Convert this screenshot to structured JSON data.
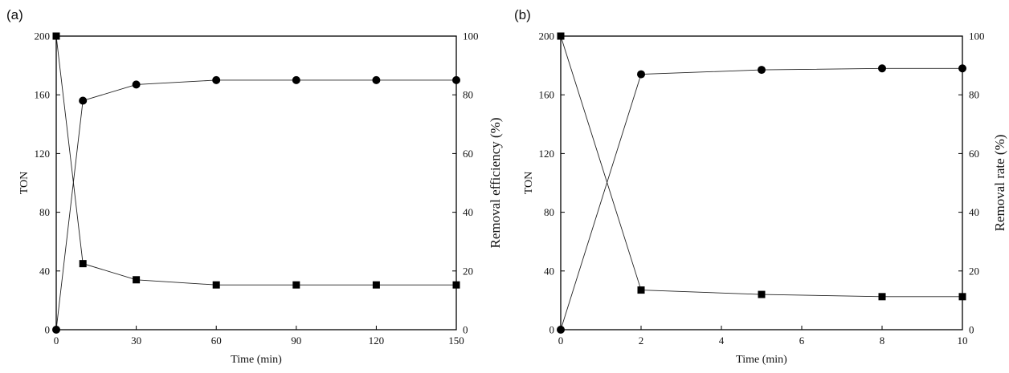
{
  "chart_data": [
    {
      "panel_label": "(a)",
      "type": "line",
      "xlabel": "Time (min)",
      "ylabel_left": "TON",
      "ylabel_right": "Removal efficiency (%)",
      "xlim": [
        0,
        150
      ],
      "ylim_left": [
        0,
        200
      ],
      "ylim_right": [
        0,
        100
      ],
      "xticks": [
        "0",
        "30",
        "60",
        "90",
        "120",
        "150"
      ],
      "yticks_left": [
        "0",
        "40",
        "80",
        "120",
        "160",
        "200"
      ],
      "yticks_right": [
        "0",
        "20",
        "40",
        "60",
        "80",
        "100"
      ],
      "grid": false,
      "series": [
        {
          "axis": "left",
          "marker": "square",
          "x": [
            0,
            10,
            30,
            60,
            90,
            120,
            150
          ],
          "values": [
            200,
            45,
            34,
            30.5,
            30.5,
            30.5,
            30.5
          ]
        },
        {
          "axis": "right",
          "marker": "circle",
          "x": [
            0,
            10,
            30,
            60,
            90,
            120,
            150
          ],
          "values": [
            0,
            78,
            83.5,
            85,
            85,
            85,
            85
          ]
        }
      ]
    },
    {
      "panel_label": "(b)",
      "type": "line",
      "xlabel": "Time (min)",
      "ylabel_left": "TON",
      "ylabel_right": "Removal rate (%)",
      "xlim": [
        0,
        10
      ],
      "ylim_left": [
        0,
        200
      ],
      "ylim_right": [
        0,
        100
      ],
      "xticks": [
        "0",
        "2",
        "4",
        "6",
        "8",
        "10"
      ],
      "yticks_left": [
        "0",
        "40",
        "80",
        "120",
        "160",
        "200"
      ],
      "yticks_right": [
        "0",
        "20",
        "40",
        "60",
        "80",
        "100"
      ],
      "grid": false,
      "series": [
        {
          "axis": "left",
          "marker": "square",
          "x": [
            0,
            2,
            5,
            8,
            10
          ],
          "values": [
            200,
            27,
            24,
            22.5,
            22.5
          ]
        },
        {
          "axis": "right",
          "marker": "circle",
          "x": [
            0,
            2,
            5,
            8,
            10
          ],
          "values": [
            0,
            87,
            88.5,
            89,
            89
          ]
        }
      ]
    }
  ]
}
